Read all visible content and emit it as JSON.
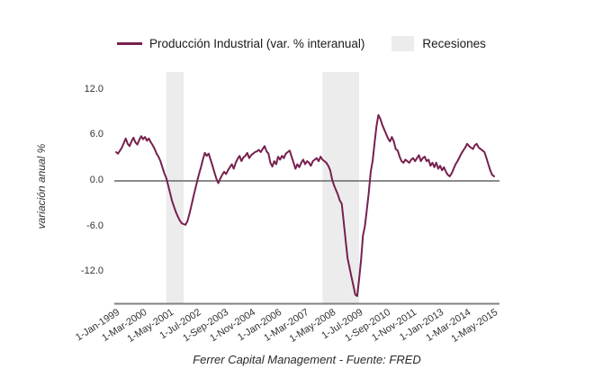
{
  "legend": {
    "series_label": "Producción Industrial (var. % interanual)",
    "recessions_label": "Recesiones"
  },
  "y_axis": {
    "title": "variación anual %"
  },
  "footer": {
    "caption": "Ferrer Capital Management - Fuente: FRED"
  },
  "colors": {
    "line": "#76204e",
    "recession_band": "#ececec",
    "zero_line": "#666666",
    "axis_line": "#808080",
    "tick_text": "#333333"
  },
  "chart_data": {
    "type": "line",
    "title": "",
    "ylabel": "variación anual %",
    "grid": false,
    "legend_position": "top",
    "ylim": [
      -16.2,
      14.4
    ],
    "y_tick_values": [
      12.0,
      6.0,
      0.0,
      -6.0,
      -12.0
    ],
    "y_tick_labels": [
      "12.0",
      "6.0",
      "0.0",
      "-6.0",
      "-12.0"
    ],
    "x_tick_labels": [
      "1-Jan-1999",
      "1-Mar-2000",
      "1-May-2001",
      "1-Jul-2002",
      "1-Sep-2003",
      "1-Nov-2004",
      "1-Jan-2006",
      "1-Mar-2007",
      "1-May-2008",
      "1-Jul-2009",
      "1-Sep-2010",
      "1-Nov-2011",
      "1-Jan-2013",
      "1-Mar-2014",
      "1-May-2015"
    ],
    "x_tick_interval_months": 14,
    "recessions": [
      {
        "from": "2001-03",
        "to": "2001-11"
      },
      {
        "from": "2007-12",
        "to": "2009-06"
      }
    ],
    "series": [
      {
        "name": "Producción Industrial (var. % interanual)",
        "start": "1999-01",
        "frequency": "monthly",
        "values": [
          3.8,
          3.6,
          4.0,
          4.4,
          5.0,
          5.6,
          4.9,
          4.6,
          5.2,
          5.7,
          5.1,
          4.8,
          5.4,
          5.9,
          5.5,
          5.8,
          5.3,
          5.6,
          5.1,
          4.7,
          4.2,
          3.6,
          3.2,
          2.6,
          1.8,
          1.0,
          0.4,
          -0.6,
          -1.6,
          -2.6,
          -3.4,
          -4.1,
          -4.7,
          -5.2,
          -5.6,
          -5.7,
          -5.8,
          -5.3,
          -4.4,
          -3.3,
          -2.2,
          -1.1,
          -0.1,
          0.9,
          1.8,
          2.8,
          3.7,
          3.3,
          3.6,
          2.8,
          2.0,
          1.1,
          0.3,
          -0.3,
          0.3,
          0.8,
          1.2,
          0.9,
          1.4,
          1.8,
          2.2,
          1.6,
          2.4,
          2.9,
          3.3,
          2.6,
          3.1,
          3.3,
          3.7,
          3.0,
          3.4,
          3.6,
          3.8,
          3.9,
          4.1,
          3.8,
          4.2,
          4.6,
          3.9,
          3.6,
          2.4,
          1.9,
          2.6,
          2.2,
          3.2,
          2.8,
          3.3,
          3.0,
          3.6,
          3.8,
          4.0,
          3.2,
          2.4,
          1.6,
          2.2,
          1.8,
          2.4,
          2.8,
          2.2,
          2.6,
          2.4,
          2.0,
          2.6,
          2.8,
          3.0,
          2.6,
          3.2,
          2.8,
          2.6,
          2.4,
          2.0,
          1.4,
          0.2,
          -0.6,
          -1.2,
          -1.8,
          -2.6,
          -3.0,
          -5.4,
          -7.8,
          -10.2,
          -11.4,
          -12.6,
          -13.8,
          -15.0,
          -15.2,
          -13.0,
          -10.4,
          -7.2,
          -6.0,
          -3.8,
          -1.6,
          1.2,
          2.6,
          5.0,
          7.2,
          8.7,
          8.2,
          7.4,
          6.8,
          6.2,
          5.6,
          5.2,
          5.8,
          5.2,
          4.2,
          4.0,
          3.2,
          2.6,
          2.4,
          2.8,
          2.6,
          2.4,
          2.8,
          3.0,
          2.6,
          3.0,
          3.4,
          2.6,
          3.0,
          3.2,
          2.6,
          2.8,
          2.0,
          2.4,
          1.8,
          2.4,
          1.6,
          2.0,
          1.4,
          1.8,
          1.2,
          0.8,
          0.6,
          1.0,
          1.6,
          2.2,
          2.6,
          3.1,
          3.6,
          4.0,
          4.4,
          4.9,
          4.6,
          4.4,
          4.2,
          4.7,
          4.9,
          4.4,
          4.2,
          4.0,
          3.8,
          3.0,
          2.2,
          1.4,
          0.8,
          0.6
        ]
      }
    ],
    "source_caption": "Ferrer Capital Management - Fuente: FRED"
  }
}
